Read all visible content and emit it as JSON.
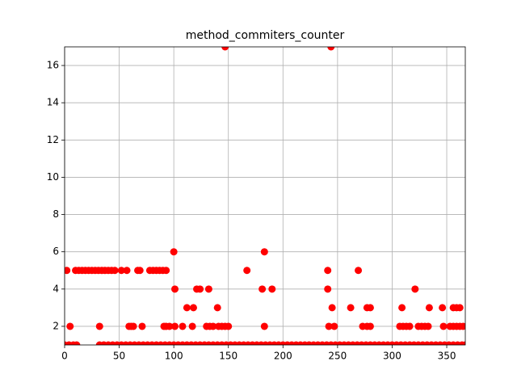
{
  "chart_data": {
    "type": "scatter",
    "title": "method_commiters_counter",
    "color": "#ff0000",
    "grid": true,
    "xlim": [
      0,
      367
    ],
    "ylim": [
      1,
      17
    ],
    "xticks": [
      0,
      50,
      100,
      150,
      200,
      250,
      300,
      350
    ],
    "yticks": [
      2,
      4,
      6,
      8,
      10,
      12,
      14,
      16
    ],
    "x": [
      2,
      10,
      13,
      16,
      19,
      22,
      25,
      28,
      31,
      34,
      37,
      40,
      43,
      46,
      52,
      57,
      67,
      69,
      78,
      81,
      84,
      87,
      90,
      93,
      167,
      241,
      269,
      5,
      32,
      59,
      61,
      63,
      71,
      91,
      93,
      96,
      101,
      108,
      117,
      130,
      133,
      136,
      141,
      144,
      147,
      150,
      183,
      242,
      247,
      273,
      277,
      280,
      307,
      310,
      313,
      316,
      324,
      327,
      330,
      333,
      347,
      353,
      356,
      359,
      362,
      365,
      100,
      183,
      101,
      121,
      124,
      132,
      181,
      190,
      241,
      321,
      112,
      118,
      140,
      245,
      262,
      277,
      280,
      309,
      334,
      346,
      356,
      359,
      362,
      147,
      244,
      0,
      4,
      8,
      11,
      32,
      36,
      40,
      44,
      48,
      52,
      56,
      60,
      64,
      68,
      72,
      76,
      80,
      84,
      88,
      92,
      96,
      100,
      104,
      108,
      112,
      116,
      120,
      124,
      128,
      132,
      136,
      140,
      144,
      148,
      152,
      156,
      160,
      164,
      168,
      172,
      176,
      180,
      184,
      188,
      192,
      196,
      200,
      204,
      208,
      212,
      216,
      220,
      224,
      228,
      232,
      236,
      240,
      244,
      248,
      252,
      256,
      260,
      264,
      268,
      272,
      276,
      280,
      284,
      288,
      292,
      296,
      300,
      304,
      308,
      312,
      316,
      320,
      324,
      328,
      332,
      336,
      340,
      344,
      348,
      352,
      356,
      360,
      364,
      367
    ],
    "values": [
      5,
      5,
      5,
      5,
      5,
      5,
      5,
      5,
      5,
      5,
      5,
      5,
      5,
      5,
      5,
      5,
      5,
      5,
      5,
      5,
      5,
      5,
      5,
      5,
      5,
      5,
      5,
      2,
      2,
      2,
      2,
      2,
      2,
      2,
      2,
      2,
      2,
      2,
      2,
      2,
      2,
      2,
      2,
      2,
      2,
      2,
      2,
      2,
      2,
      2,
      2,
      2,
      2,
      2,
      2,
      2,
      2,
      2,
      2,
      2,
      2,
      2,
      2,
      2,
      2,
      2,
      6,
      6,
      4,
      4,
      4,
      4,
      4,
      4,
      4,
      4,
      3,
      3,
      3,
      3,
      3,
      3,
      3,
      3,
      3,
      3,
      3,
      3,
      3,
      17,
      17,
      1,
      1,
      1,
      1,
      1,
      1,
      1,
      1,
      1,
      1,
      1,
      1,
      1,
      1,
      1,
      1,
      1,
      1,
      1,
      1,
      1,
      1,
      1,
      1,
      1,
      1,
      1,
      1,
      1,
      1,
      1,
      1,
      1,
      1,
      1,
      1,
      1,
      1,
      1,
      1,
      1,
      1,
      1,
      1,
      1,
      1,
      1,
      1,
      1,
      1,
      1,
      1,
      1,
      1,
      1,
      1,
      1,
      1,
      1,
      1,
      1,
      1,
      1,
      1,
      1,
      1,
      1,
      1,
      1,
      1,
      1,
      1,
      1,
      1,
      1,
      1,
      1,
      1,
      1,
      1,
      1,
      1,
      1,
      1,
      1,
      1,
      1,
      1,
      1
    ]
  }
}
